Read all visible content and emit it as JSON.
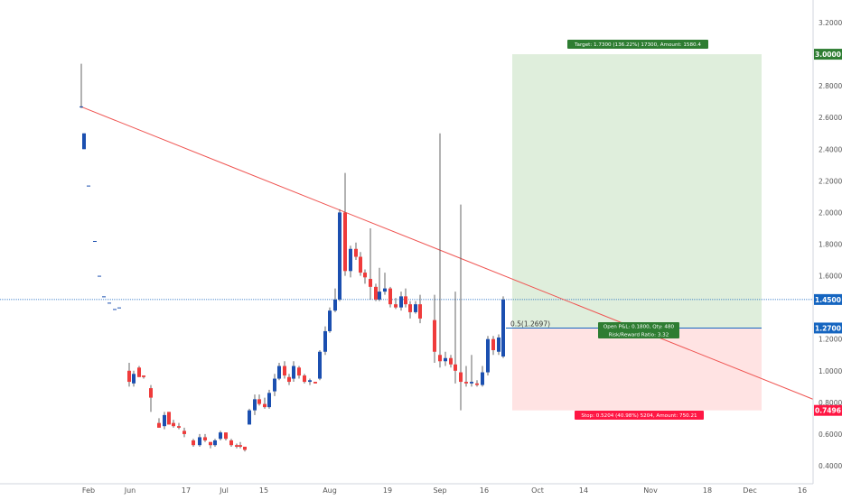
{
  "chart_data": {
    "type": "candlestick",
    "x_axis": {
      "tick_labels": [
        "Feb",
        "Jun",
        "17",
        "Jul",
        "15",
        "Aug",
        "19",
        "Sep",
        "16",
        "Oct",
        "14",
        "Nov",
        "18",
        "Dec",
        "16"
      ]
    },
    "y_axis": {
      "range": [
        0.3,
        3.3
      ],
      "tick_labels": [
        "3.2000",
        "2.8000",
        "2.6000",
        "2.4000",
        "2.2000",
        "2.0000",
        "1.8000",
        "1.6000",
        "1.2000",
        "1.0000",
        "0.8000",
        "0.6000",
        "0.4000"
      ]
    },
    "price_tags": [
      {
        "label": "3.0000",
        "value": 3.0,
        "color": "#2e7d32"
      },
      {
        "label": "1.4500",
        "value": 1.45,
        "color": "#1565c0"
      },
      {
        "label": "1.2700",
        "value": 1.27,
        "color": "#1565c0"
      },
      {
        "label": "0.7496",
        "value": 0.7496,
        "color": "#ff1744"
      }
    ],
    "position": {
      "type": "long",
      "entry": 1.27,
      "target": 3.0,
      "stop": 0.7496,
      "current_price": 1.45,
      "entry_label": "0.5(1.2697)",
      "target_label": "Target: 1.7300 (136.22%) 17300, Amount: 1580.4",
      "pnl_label_line1": "Open P&L: 0.1800, Qty: 480",
      "pnl_label_line2": "Risk/Reward Ratio: 3.32",
      "stop_label": "Stop: 0.5204 (40.98%) 5204, Amount: 750.21"
    },
    "trendline": {
      "color": "#ef5350",
      "from": [
        0,
        2.67
      ],
      "to": [
        1,
        0.82
      ]
    },
    "candles": [
      {
        "o": 2.67,
        "h": 2.94,
        "l": 2.66,
        "c": 2.67
      },
      {
        "o": 2.4,
        "h": 2.5,
        "l": 2.4,
        "c": 2.5
      },
      {
        "o": 2.17,
        "h": 2.17,
        "l": 2.17,
        "c": 2.17
      },
      {
        "o": 1.82,
        "h": 1.82,
        "l": 1.82,
        "c": 1.82
      },
      {
        "o": 1.6,
        "h": 1.6,
        "l": 1.6,
        "c": 1.6
      },
      {
        "o": 1.47,
        "h": 1.47,
        "l": 1.47,
        "c": 1.47
      },
      {
        "o": 1.43,
        "h": 1.43,
        "l": 1.43,
        "c": 1.43
      },
      {
        "o": 1.39,
        "h": 1.39,
        "l": 1.39,
        "c": 1.39
      },
      {
        "o": 1.4,
        "h": 1.4,
        "l": 1.4,
        "c": 1.4
      },
      {
        "o": 1.0,
        "h": 1.05,
        "l": 0.9,
        "c": 0.93
      },
      {
        "o": 0.92,
        "h": 1.0,
        "l": 0.9,
        "c": 0.98
      },
      {
        "o": 1.02,
        "h": 1.03,
        "l": 0.96,
        "c": 0.96
      },
      {
        "o": 0.97,
        "h": 0.97,
        "l": 0.95,
        "c": 0.96
      },
      {
        "o": 0.89,
        "h": 0.91,
        "l": 0.74,
        "c": 0.83
      },
      {
        "o": 0.67,
        "h": 0.7,
        "l": 0.64,
        "c": 0.64
      },
      {
        "o": 0.65,
        "h": 0.74,
        "l": 0.63,
        "c": 0.72
      },
      {
        "o": 0.74,
        "h": 0.74,
        "l": 0.66,
        "c": 0.66
      },
      {
        "o": 0.67,
        "h": 0.69,
        "l": 0.64,
        "c": 0.65
      },
      {
        "o": 0.65,
        "h": 0.67,
        "l": 0.63,
        "c": 0.64
      },
      {
        "o": 0.62,
        "h": 0.64,
        "l": 0.58,
        "c": 0.6
      },
      {
        "o": 0.56,
        "h": 0.57,
        "l": 0.52,
        "c": 0.53
      },
      {
        "o": 0.53,
        "h": 0.6,
        "l": 0.52,
        "c": 0.58
      },
      {
        "o": 0.58,
        "h": 0.6,
        "l": 0.55,
        "c": 0.56
      },
      {
        "o": 0.55,
        "h": 0.55,
        "l": 0.51,
        "c": 0.53
      },
      {
        "o": 0.53,
        "h": 0.57,
        "l": 0.52,
        "c": 0.56
      },
      {
        "o": 0.57,
        "h": 0.62,
        "l": 0.56,
        "c": 0.61
      },
      {
        "o": 0.61,
        "h": 0.61,
        "l": 0.56,
        "c": 0.57
      },
      {
        "o": 0.56,
        "h": 0.57,
        "l": 0.52,
        "c": 0.53
      },
      {
        "o": 0.53,
        "h": 0.54,
        "l": 0.51,
        "c": 0.52
      },
      {
        "o": 0.53,
        "h": 0.55,
        "l": 0.51,
        "c": 0.52
      },
      {
        "o": 0.52,
        "h": 0.52,
        "l": 0.49,
        "c": 0.5
      },
      {
        "o": 0.66,
        "h": 0.76,
        "l": 0.66,
        "c": 0.75
      },
      {
        "o": 0.75,
        "h": 0.85,
        "l": 0.72,
        "c": 0.82
      },
      {
        "o": 0.82,
        "h": 0.85,
        "l": 0.78,
        "c": 0.79
      },
      {
        "o": 0.79,
        "h": 0.83,
        "l": 0.76,
        "c": 0.77
      },
      {
        "o": 0.77,
        "h": 0.88,
        "l": 0.76,
        "c": 0.86
      },
      {
        "o": 0.87,
        "h": 0.98,
        "l": 0.84,
        "c": 0.95
      },
      {
        "o": 0.95,
        "h": 1.05,
        "l": 0.94,
        "c": 1.03
      },
      {
        "o": 1.03,
        "h": 1.06,
        "l": 0.95,
        "c": 0.97
      },
      {
        "o": 0.96,
        "h": 0.98,
        "l": 0.91,
        "c": 0.93
      },
      {
        "o": 0.95,
        "h": 1.06,
        "l": 0.93,
        "c": 1.03
      },
      {
        "o": 1.02,
        "h": 1.03,
        "l": 0.95,
        "c": 0.97
      },
      {
        "o": 0.97,
        "h": 0.98,
        "l": 0.92,
        "c": 0.93
      },
      {
        "o": 0.93,
        "h": 0.95,
        "l": 0.91,
        "c": 0.94
      },
      {
        "o": 0.93,
        "h": 0.93,
        "l": 0.92,
        "c": 0.92
      },
      {
        "o": 0.95,
        "h": 1.13,
        "l": 0.94,
        "c": 1.12
      },
      {
        "o": 1.12,
        "h": 1.28,
        "l": 1.1,
        "c": 1.25
      },
      {
        "o": 1.25,
        "h": 1.4,
        "l": 1.24,
        "c": 1.38
      },
      {
        "o": 1.38,
        "h": 1.52,
        "l": 1.37,
        "c": 1.45
      },
      {
        "o": 1.45,
        "h": 2.02,
        "l": 1.44,
        "c": 2.0
      },
      {
        "o": 2.0,
        "h": 2.25,
        "l": 1.6,
        "c": 1.63
      },
      {
        "o": 1.63,
        "h": 1.79,
        "l": 1.59,
        "c": 1.77
      },
      {
        "o": 1.77,
        "h": 1.81,
        "l": 1.7,
        "c": 1.72
      },
      {
        "o": 1.72,
        "h": 1.75,
        "l": 1.6,
        "c": 1.62
      },
      {
        "o": 1.62,
        "h": 1.64,
        "l": 1.55,
        "c": 1.59
      },
      {
        "o": 1.58,
        "h": 1.9,
        "l": 1.45,
        "c": 1.53
      },
      {
        "o": 1.53,
        "h": 1.55,
        "l": 1.44,
        "c": 1.45
      },
      {
        "o": 1.45,
        "h": 1.65,
        "l": 1.44,
        "c": 1.5
      },
      {
        "o": 1.5,
        "h": 1.62,
        "l": 1.48,
        "c": 1.52
      },
      {
        "o": 1.52,
        "h": 1.53,
        "l": 1.4,
        "c": 1.42
      },
      {
        "o": 1.42,
        "h": 1.46,
        "l": 1.39,
        "c": 1.4
      },
      {
        "o": 1.4,
        "h": 1.5,
        "l": 1.38,
        "c": 1.47
      },
      {
        "o": 1.47,
        "h": 1.52,
        "l": 1.4,
        "c": 1.42
      },
      {
        "o": 1.42,
        "h": 1.44,
        "l": 1.33,
        "c": 1.37
      },
      {
        "o": 1.37,
        "h": 1.44,
        "l": 1.36,
        "c": 1.42
      },
      {
        "o": 1.42,
        "h": 1.48,
        "l": 1.3,
        "c": 1.33
      },
      {
        "o": 1.32,
        "h": 1.48,
        "l": 1.05,
        "c": 1.12
      },
      {
        "o": 1.1,
        "h": 2.5,
        "l": 1.02,
        "c": 1.06
      },
      {
        "o": 1.06,
        "h": 1.12,
        "l": 1.03,
        "c": 1.08
      },
      {
        "o": 1.08,
        "h": 1.1,
        "l": 1.02,
        "c": 1.04
      },
      {
        "o": 1.04,
        "h": 1.5,
        "l": 0.92,
        "c": 1.0
      },
      {
        "o": 0.99,
        "h": 2.05,
        "l": 0.75,
        "c": 0.93
      },
      {
        "o": 0.93,
        "h": 1.03,
        "l": 0.9,
        "c": 0.92
      },
      {
        "o": 0.92,
        "h": 1.1,
        "l": 0.9,
        "c": 0.93
      },
      {
        "o": 0.92,
        "h": 0.94,
        "l": 0.9,
        "c": 0.91
      },
      {
        "o": 0.91,
        "h": 1.03,
        "l": 0.9,
        "c": 0.99
      },
      {
        "o": 0.99,
        "h": 1.22,
        "l": 0.97,
        "c": 1.2
      },
      {
        "o": 1.2,
        "h": 1.22,
        "l": 1.1,
        "c": 1.13
      },
      {
        "o": 1.12,
        "h": 1.23,
        "l": 1.1,
        "c": 1.21
      },
      {
        "o": 1.09,
        "h": 1.47,
        "l": 1.08,
        "c": 1.45
      }
    ]
  }
}
